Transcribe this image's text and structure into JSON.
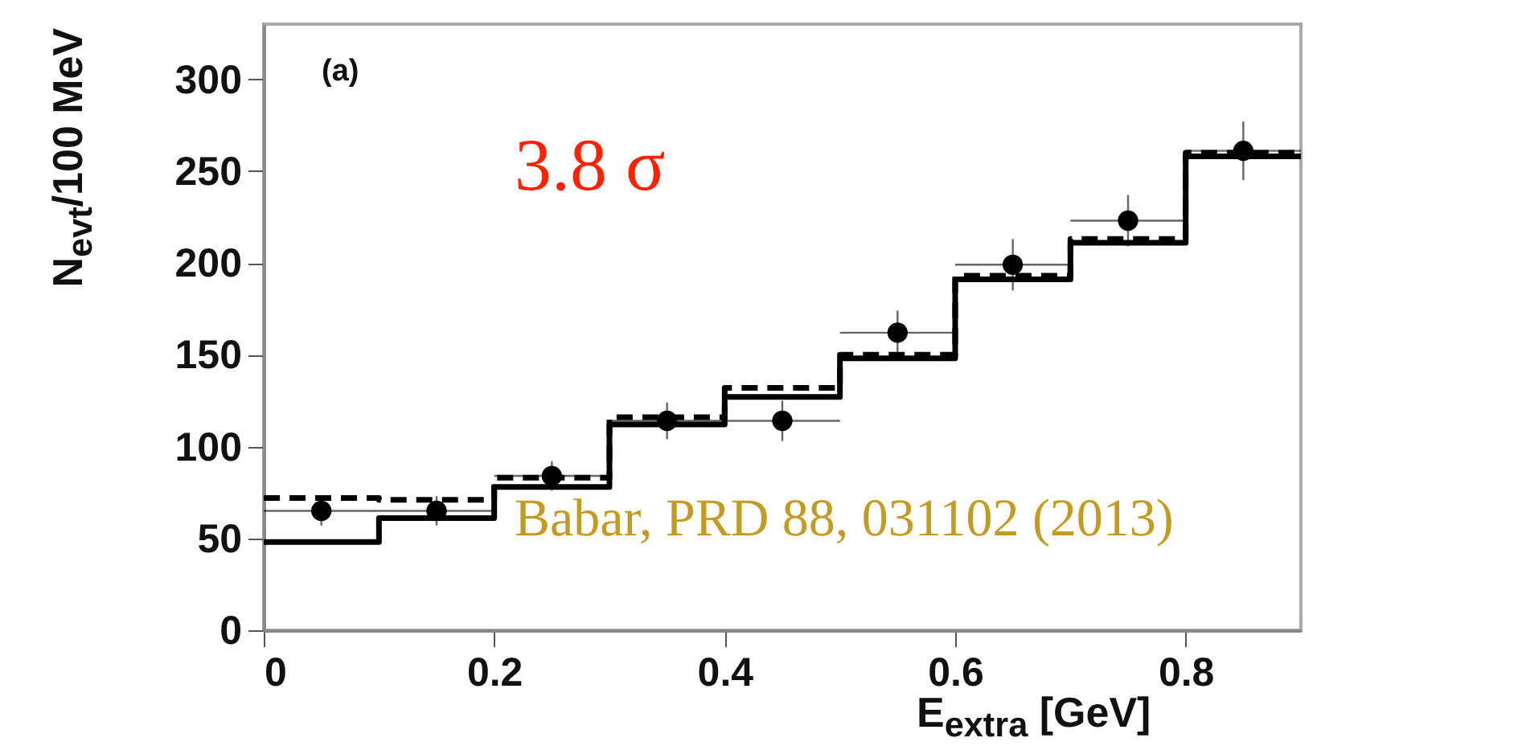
{
  "chart_data": {
    "type": "step",
    "xlabel": "E$_{extra}$ [GeV]",
    "ylabel": "N$_{evt}$/100 MeV",
    "annotations": [
      "(a)",
      "3.8 σ",
      "Babar, PRD 88, 031102 (2013)"
    ],
    "series": [
      {
        "color": "#000000",
        "line_style": "solid",
        "x": [
          0,
          0.1,
          0.2,
          0.3,
          0.4,
          0.5,
          0.6,
          0.7,
          0.8,
          0.9
        ],
        "values": [
          48,
          61,
          78,
          112,
          127,
          148,
          191,
          211,
          258,
          258
        ]
      },
      {
        "color": "#000000",
        "line_style": "dashed",
        "x": [
          0,
          0.1,
          0.2,
          0.3,
          0.4,
          0.5,
          0.6,
          0.7,
          0.8,
          0.9
        ],
        "values": [
          72,
          71,
          83,
          116,
          132,
          150,
          193,
          213,
          260,
          260
        ]
      },
      {
        "type": "scatter",
        "color": "#000000",
        "marker": "circle",
        "x": [
          0.05,
          0.15,
          0.25,
          0.35,
          0.45,
          0.55,
          0.65,
          0.75,
          0.85
        ],
        "values": [
          65,
          65,
          84,
          114,
          114,
          162,
          199,
          223,
          261
        ],
        "errors": [
          8,
          8,
          8,
          10,
          11,
          12,
          14,
          14,
          16
        ],
        "xerrors": [
          0.05,
          0.05,
          0.05,
          0.05,
          0.05,
          0.05,
          0.05,
          0.05,
          0.05
        ]
      }
    ],
    "xlim": [
      0,
      0.9
    ],
    "xticks": [
      0,
      0.2,
      0.4,
      0.6,
      0.8
    ],
    "ylim": [
      0,
      330
    ],
    "yticks": [
      0,
      50,
      100,
      150,
      200,
      250,
      300
    ],
    "grid": false
  }
}
